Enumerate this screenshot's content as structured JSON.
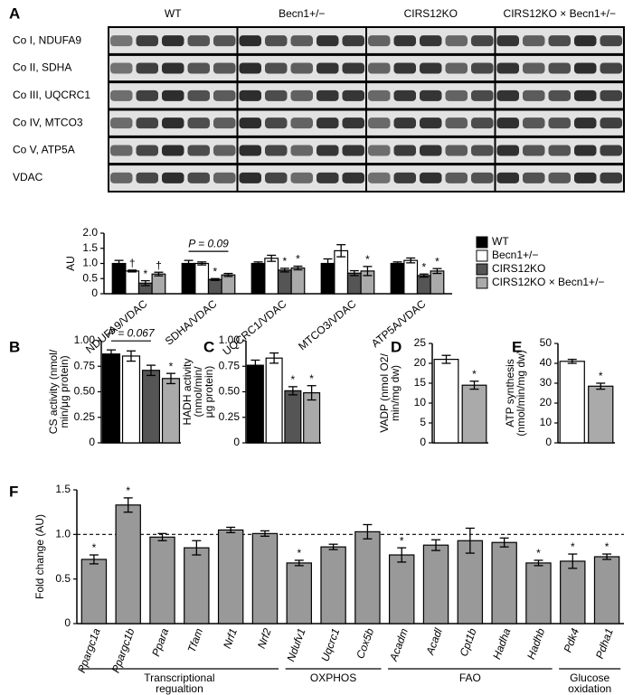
{
  "blot": {
    "panel": "A",
    "groups": [
      "WT",
      "Becn1+/−",
      "CIRS12KO",
      "CIRS12KO × Becn1+/−"
    ],
    "rows": [
      "Co I, NDUFA9",
      "Co II, SDHA",
      "Co III, UQCRC1",
      "Co IV, MTCO3",
      "Co V, ATP5A",
      "VDAC"
    ]
  },
  "chart_data": [
    {
      "type": "bar",
      "y_label": [
        "AU"
      ],
      "categories": [
        "NDUFA9/VDAC",
        "SDHA/VDAC",
        "UQCRC1/VDAC",
        "MTCO3/VDAC",
        "ATP5A/VDAC"
      ],
      "series": [
        {
          "name": "WT",
          "color": "#000000",
          "values": [
            1.0,
            1.0,
            1.0,
            1.0,
            1.0
          ],
          "errors": [
            0.1,
            0.1,
            0.05,
            0.15,
            0.05
          ],
          "significance": [
            null,
            null,
            null,
            null,
            null
          ]
        },
        {
          "name": "Becn1+/−",
          "color": "#ffffff",
          "values": [
            0.75,
            1.0,
            1.17,
            1.42,
            1.1
          ],
          "errors": [
            0.03,
            0.05,
            0.1,
            0.2,
            0.08
          ],
          "significance": [
            "†",
            null,
            null,
            null,
            null
          ]
        },
        {
          "name": "CIRS12KO",
          "color": "#555555",
          "values": [
            0.35,
            0.47,
            0.78,
            0.68,
            0.6
          ],
          "errors": [
            0.08,
            0.03,
            0.06,
            0.08,
            0.05
          ],
          "significance": [
            "*",
            "*",
            "*",
            null,
            "*"
          ]
        },
        {
          "name": "CIRS12KO × Becn1+/−",
          "color": "#aaaaaa",
          "values": [
            0.65,
            0.62,
            0.85,
            0.75,
            0.75
          ],
          "errors": [
            0.06,
            0.05,
            0.06,
            0.15,
            0.08
          ],
          "significance": [
            "†",
            null,
            "*",
            "*",
            "*"
          ]
        }
      ],
      "ylim": [
        0,
        2
      ],
      "yticks": [
        0,
        0.5,
        {
          "value": 1,
          "label": "1.0"
        },
        1.5,
        {
          "value": 2,
          "label": "2.0"
        }
      ],
      "legend": "right",
      "p_annotation": {
        "label": "P = 0.09",
        "category": 1,
        "from": 0,
        "to": 3
      }
    },
    {
      "type": "bar",
      "panel": "B",
      "y_label": [
        "CS activity (nmol/",
        "min/μg protein)"
      ],
      "values": [
        0.87,
        0.85,
        0.71,
        0.63
      ],
      "errors": [
        0.04,
        0.05,
        0.05,
        0.05
      ],
      "colors": [
        "#000000",
        "#ffffff",
        "#555555",
        "#aaaaaa"
      ],
      "significance": [
        null,
        null,
        null,
        "*"
      ],
      "ylim": [
        0,
        1
      ],
      "yticks": [
        0,
        0.25,
        {
          "value": 0.5,
          "label": "0.50"
        },
        0.75,
        {
          "value": 1,
          "label": "1.00"
        }
      ],
      "p_annotation": {
        "label": "P = 0.067",
        "from": 0,
        "to": 2
      }
    },
    {
      "type": "bar",
      "panel": "C",
      "y_label": [
        "HADH activity",
        "(nmol/min/",
        "μg protein)"
      ],
      "values": [
        0.76,
        0.83,
        0.51,
        0.49
      ],
      "errors": [
        0.05,
        0.05,
        0.04,
        0.07
      ],
      "colors": [
        "#000000",
        "#ffffff",
        "#555555",
        "#aaaaaa"
      ],
      "significance": [
        null,
        null,
        "*",
        "*"
      ],
      "ylim": [
        0,
        1
      ],
      "yticks": [
        0,
        0.25,
        {
          "value": 0.5,
          "label": "0.50"
        },
        0.75,
        {
          "value": 1,
          "label": "1.00"
        }
      ]
    },
    {
      "type": "bar",
      "panel": "D",
      "y_label": [
        "VADP (nmol O2/",
        "min/mg dw)"
      ],
      "values": [
        21,
        14.5
      ],
      "errors": [
        1,
        1
      ],
      "colors": [
        "#ffffff",
        "#aaaaaa"
      ],
      "significance": [
        null,
        "*"
      ],
      "ylim": [
        0,
        25
      ],
      "yticks": [
        0,
        5,
        10,
        15,
        20,
        25
      ]
    },
    {
      "type": "bar",
      "panel": "E",
      "y_label": [
        "ATP synthesis",
        "(nmol/min/mg dw)"
      ],
      "values": [
        41,
        28.5
      ],
      "errors": [
        1,
        1.5
      ],
      "colors": [
        "#ffffff",
        "#aaaaaa"
      ],
      "significance": [
        null,
        "*"
      ],
      "ylim": [
        0,
        50
      ],
      "yticks": [
        0,
        10,
        20,
        30,
        40,
        50
      ]
    },
    {
      "type": "bar",
      "panel": "F",
      "y_label": [
        "Fold change (AU)"
      ],
      "categories": [
        "Ppargc1a",
        "Ppargc1b",
        "Ppara",
        "Tfam",
        "Nrf1",
        "Nrf2",
        "Ndufv1",
        "Uqcrc1",
        "Cox5b",
        "Acadm",
        "Acadl",
        "Cpt1b",
        "Hadha",
        "Hadhb",
        "Pdk4",
        "Pdha1"
      ],
      "values": [
        0.72,
        1.33,
        0.97,
        0.85,
        1.05,
        1.01,
        0.68,
        0.86,
        1.03,
        0.77,
        0.88,
        0.93,
        0.91,
        0.68,
        0.7,
        0.75
      ],
      "errors": [
        0.05,
        0.08,
        0.04,
        0.08,
        0.03,
        0.03,
        0.03,
        0.03,
        0.08,
        0.08,
        0.06,
        0.14,
        0.05,
        0.03,
        0.08,
        0.03
      ],
      "significance": [
        "*",
        "*",
        null,
        null,
        null,
        null,
        "*",
        null,
        null,
        "*",
        null,
        null,
        null,
        "*",
        "*",
        "*"
      ],
      "color": "#999999",
      "reference_line": 1,
      "ylim": [
        0,
        1.5
      ],
      "yticks": [
        0,
        0.5,
        {
          "value": 1,
          "label": "1.0"
        },
        1.5
      ],
      "groups": [
        {
          "label": [
            "Transcriptional",
            "regualtion"
          ],
          "first": 0,
          "last": 5
        },
        {
          "label": [
            "OXPHOS"
          ],
          "first": 6,
          "last": 8
        },
        {
          "label": [
            "FAO"
          ],
          "first": 9,
          "last": 13
        },
        {
          "label": [
            "Glucose",
            "oxidation"
          ],
          "first": 14,
          "last": 15
        }
      ]
    }
  ]
}
